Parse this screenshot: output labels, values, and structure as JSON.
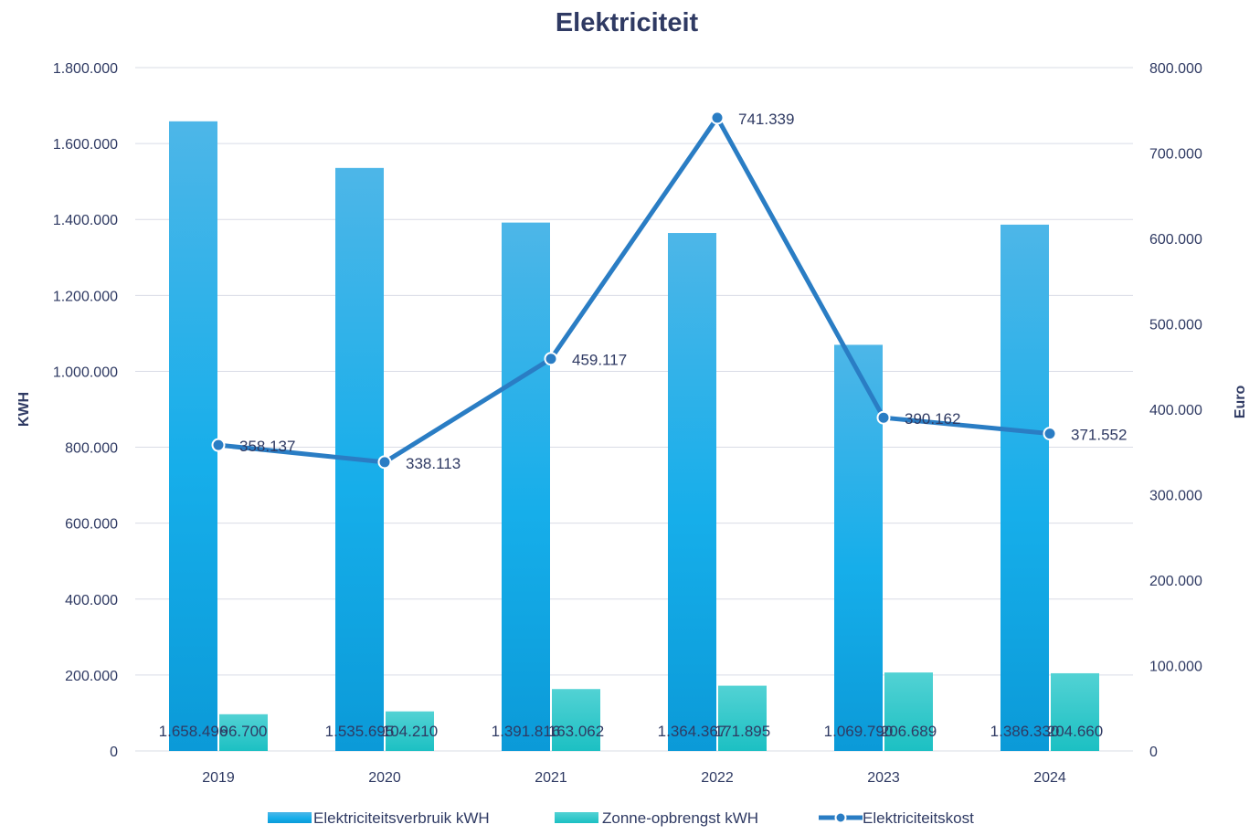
{
  "chart_data": {
    "type": "bar",
    "title": "Elektriciteit",
    "categories": [
      "2019",
      "2020",
      "2021",
      "2022",
      "2023",
      "2024"
    ],
    "ylabel": "KWH",
    "y2label": "Euro",
    "ylim": [
      0,
      1800000
    ],
    "y2lim": [
      0,
      800000
    ],
    "yticks": [
      {
        "value": 0,
        "label": "0"
      },
      {
        "value": 200000,
        "label": "200.000"
      },
      {
        "value": 400000,
        "label": "400.000"
      },
      {
        "value": 600000,
        "label": "600.000"
      },
      {
        "value": 800000,
        "label": "800.000"
      },
      {
        "value": 1000000,
        "label": "1.000.000"
      },
      {
        "value": 1200000,
        "label": "1.200.000"
      },
      {
        "value": 1400000,
        "label": "1.400.000"
      },
      {
        "value": 1600000,
        "label": "1.600.000"
      },
      {
        "value": 1800000,
        "label": "1.800.000"
      }
    ],
    "y2ticks": [
      {
        "value": 0,
        "label": "0"
      },
      {
        "value": 100000,
        "label": "100.000"
      },
      {
        "value": 200000,
        "label": "200.000"
      },
      {
        "value": 300000,
        "label": "300.000"
      },
      {
        "value": 400000,
        "label": "400.000"
      },
      {
        "value": 500000,
        "label": "500.000"
      },
      {
        "value": 600000,
        "label": "600.000"
      },
      {
        "value": 700000,
        "label": "700.000"
      },
      {
        "value": 800000,
        "label": "800.000"
      }
    ],
    "grid": true,
    "legend_position": "bottom",
    "series": [
      {
        "name": "Elektriciteitsverbruik kWH",
        "kind": "bar",
        "axis": "left",
        "color": "#1AA7E6",
        "values": [
          1658496,
          1535695,
          1391816,
          1364367,
          1069790,
          1386330
        ],
        "labels": [
          "1.658.496",
          "1.535.695",
          "1.391.816",
          "1.364.367",
          "1.069.790",
          "1.386.330"
        ]
      },
      {
        "name": "Zonne-opbrengst kWH",
        "kind": "bar",
        "axis": "left",
        "color": "#28C9CB",
        "values": [
          96700,
          104210,
          163062,
          171895,
          206689,
          204660
        ],
        "labels": [
          "96.700",
          "104.210",
          "163.062",
          "171.895",
          "206.689",
          "204.660"
        ]
      },
      {
        "name": "Elektriciteitskost",
        "kind": "line",
        "axis": "right",
        "color": "#2A7DC4",
        "values": [
          358137,
          338113,
          459117,
          741339,
          390162,
          371552
        ],
        "labels": [
          "358.137",
          "338.113",
          "459.117",
          "741.339",
          "390.162",
          "371.552"
        ]
      }
    ],
    "colors": {
      "title": "#2F3A63",
      "text": "#2F3A63",
      "grid": "#D9DCE6",
      "marker_fill": "#2A7DC4",
      "marker_stroke": "#ffffff"
    }
  }
}
